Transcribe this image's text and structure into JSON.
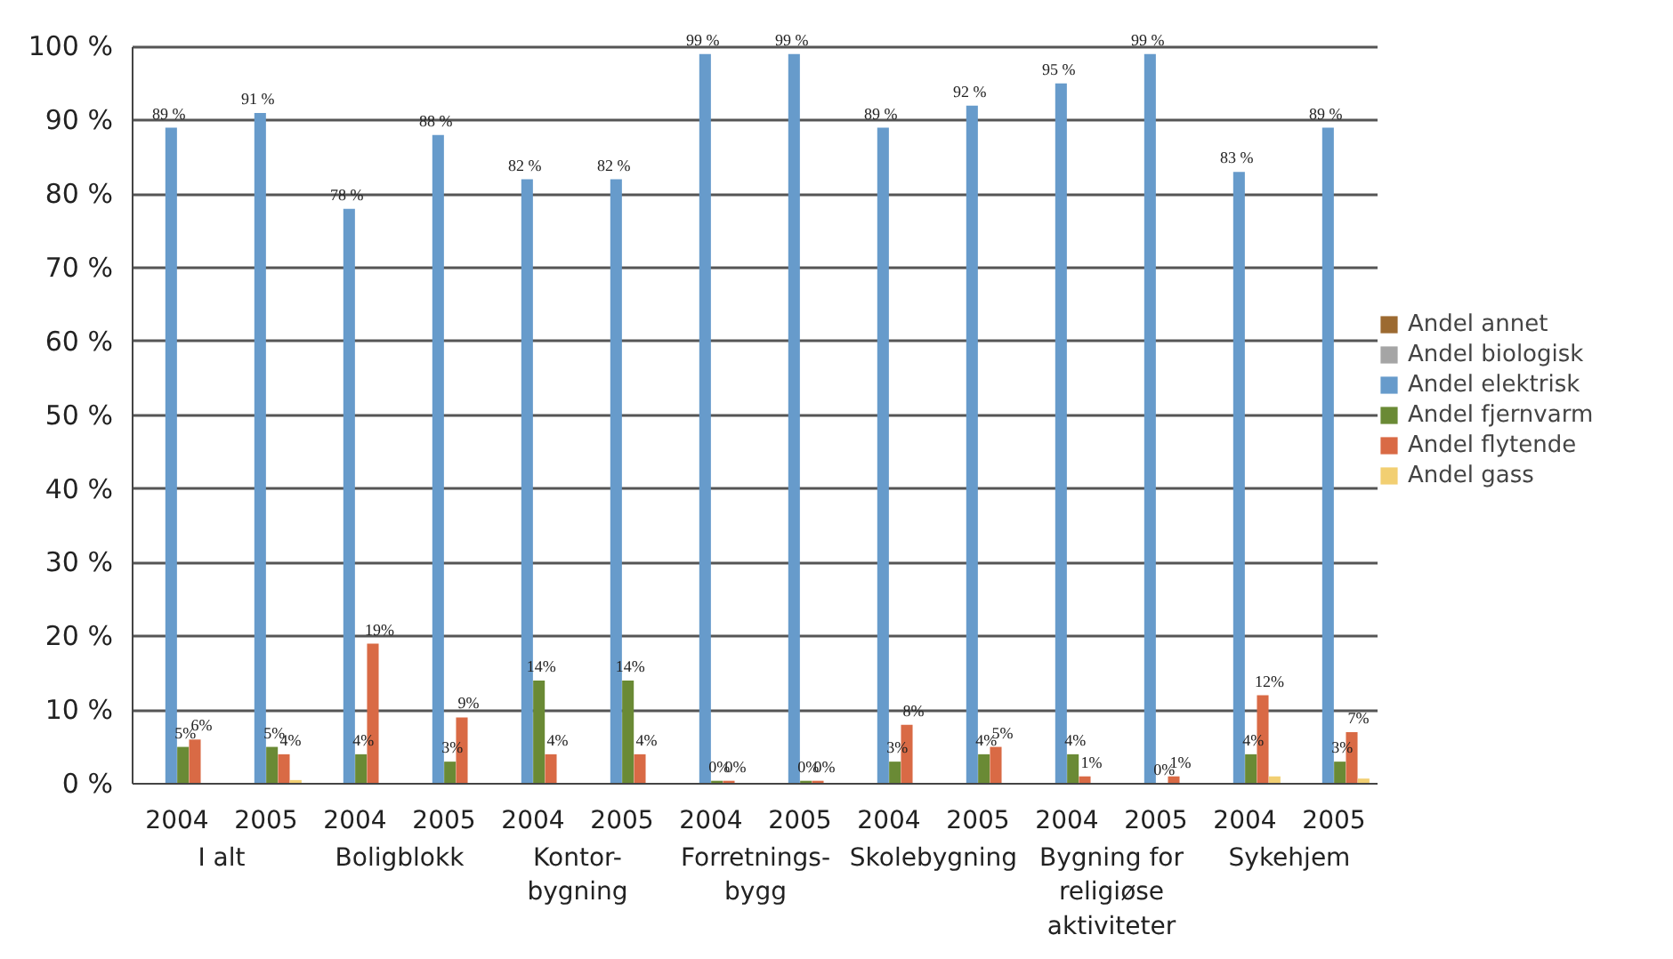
{
  "chart_data": {
    "type": "bar",
    "categories": [
      "2004",
      "2005",
      "2004",
      "2005",
      "2004",
      "2005",
      "2004",
      "2005",
      "2004",
      "2005",
      "2004",
      "2005",
      "2004",
      "2005"
    ],
    "annotations": [
      "I alt",
      "Boligblokk",
      "Kontor-\nbygning",
      "Forretnings-\nbygg",
      "Skolebygning",
      "Bygning for\nreligiøse\naktiviteter",
      "Sykehjem"
    ],
    "series": [
      {
        "name": "Andel annet",
        "color": "#9c6a31",
        "values": [
          0,
          0,
          0,
          0,
          0,
          0,
          0,
          0,
          0,
          0,
          0,
          0,
          0,
          0
        ]
      },
      {
        "name": "Andel biologisk",
        "color": "#a5a5a5",
        "values": [
          0,
          0,
          0,
          0,
          0,
          0,
          0,
          0,
          0,
          0,
          0,
          0,
          0,
          0
        ]
      },
      {
        "name": "Andel elektrisk",
        "color": "#679bcb",
        "values": [
          89,
          91,
          78,
          88,
          82,
          82,
          99,
          99,
          89,
          92,
          95,
          99,
          83,
          89
        ],
        "value_labels": [
          "89 %",
          "91 %",
          "78 %",
          "88 %",
          "82 %",
          "82 %",
          "99 %",
          "99 %",
          "89 %",
          "92 %",
          "95 %",
          "99 %",
          "83 %",
          "89 %"
        ]
      },
      {
        "name": "Andel fjernvarm",
        "color": "#6a8a35",
        "values": [
          5,
          5,
          4,
          3,
          14,
          14,
          0.4,
          0.4,
          3,
          4,
          4,
          0,
          4,
          3
        ],
        "value_labels": [
          "5%",
          "5%",
          "4%",
          "3%",
          "14%",
          "14%",
          "0%",
          "0%",
          "3%",
          "4%",
          "4%",
          "0%",
          "4%",
          "3%"
        ]
      },
      {
        "name": "Andel flytende",
        "color": "#d96a45",
        "values": [
          6,
          4,
          19,
          9,
          4,
          4,
          0.4,
          0.4,
          8,
          5,
          1,
          1,
          12,
          7
        ],
        "value_labels": [
          "6%",
          "4%",
          "19%",
          "9%",
          "4%",
          "4%",
          "0%",
          "0%",
          "8%",
          "5%",
          "1%",
          "1%",
          "12%",
          "7%"
        ]
      },
      {
        "name": "Andel gass",
        "color": "#f2cf72",
        "values": [
          0,
          0.5,
          0,
          0,
          0,
          0,
          0,
          0,
          0,
          0,
          0,
          0,
          1,
          0.7
        ]
      }
    ],
    "ylim": [
      0,
      100
    ],
    "yticks": [
      {
        "value": 0,
        "label": "0 %"
      },
      {
        "value": 10,
        "label": "10 %"
      },
      {
        "value": 20,
        "label": "20 %"
      },
      {
        "value": 30,
        "label": "30 %"
      },
      {
        "value": 40,
        "label": "40 %"
      },
      {
        "value": 50,
        "label": "50 %"
      },
      {
        "value": 60,
        "label": "60 %"
      },
      {
        "value": 70,
        "label": "70 %"
      },
      {
        "value": 80,
        "label": "80 %"
      },
      {
        "value": 90,
        "label": "90 %"
      },
      {
        "value": 100,
        "label": "100 %"
      }
    ],
    "grid": "y",
    "legend": "right"
  }
}
